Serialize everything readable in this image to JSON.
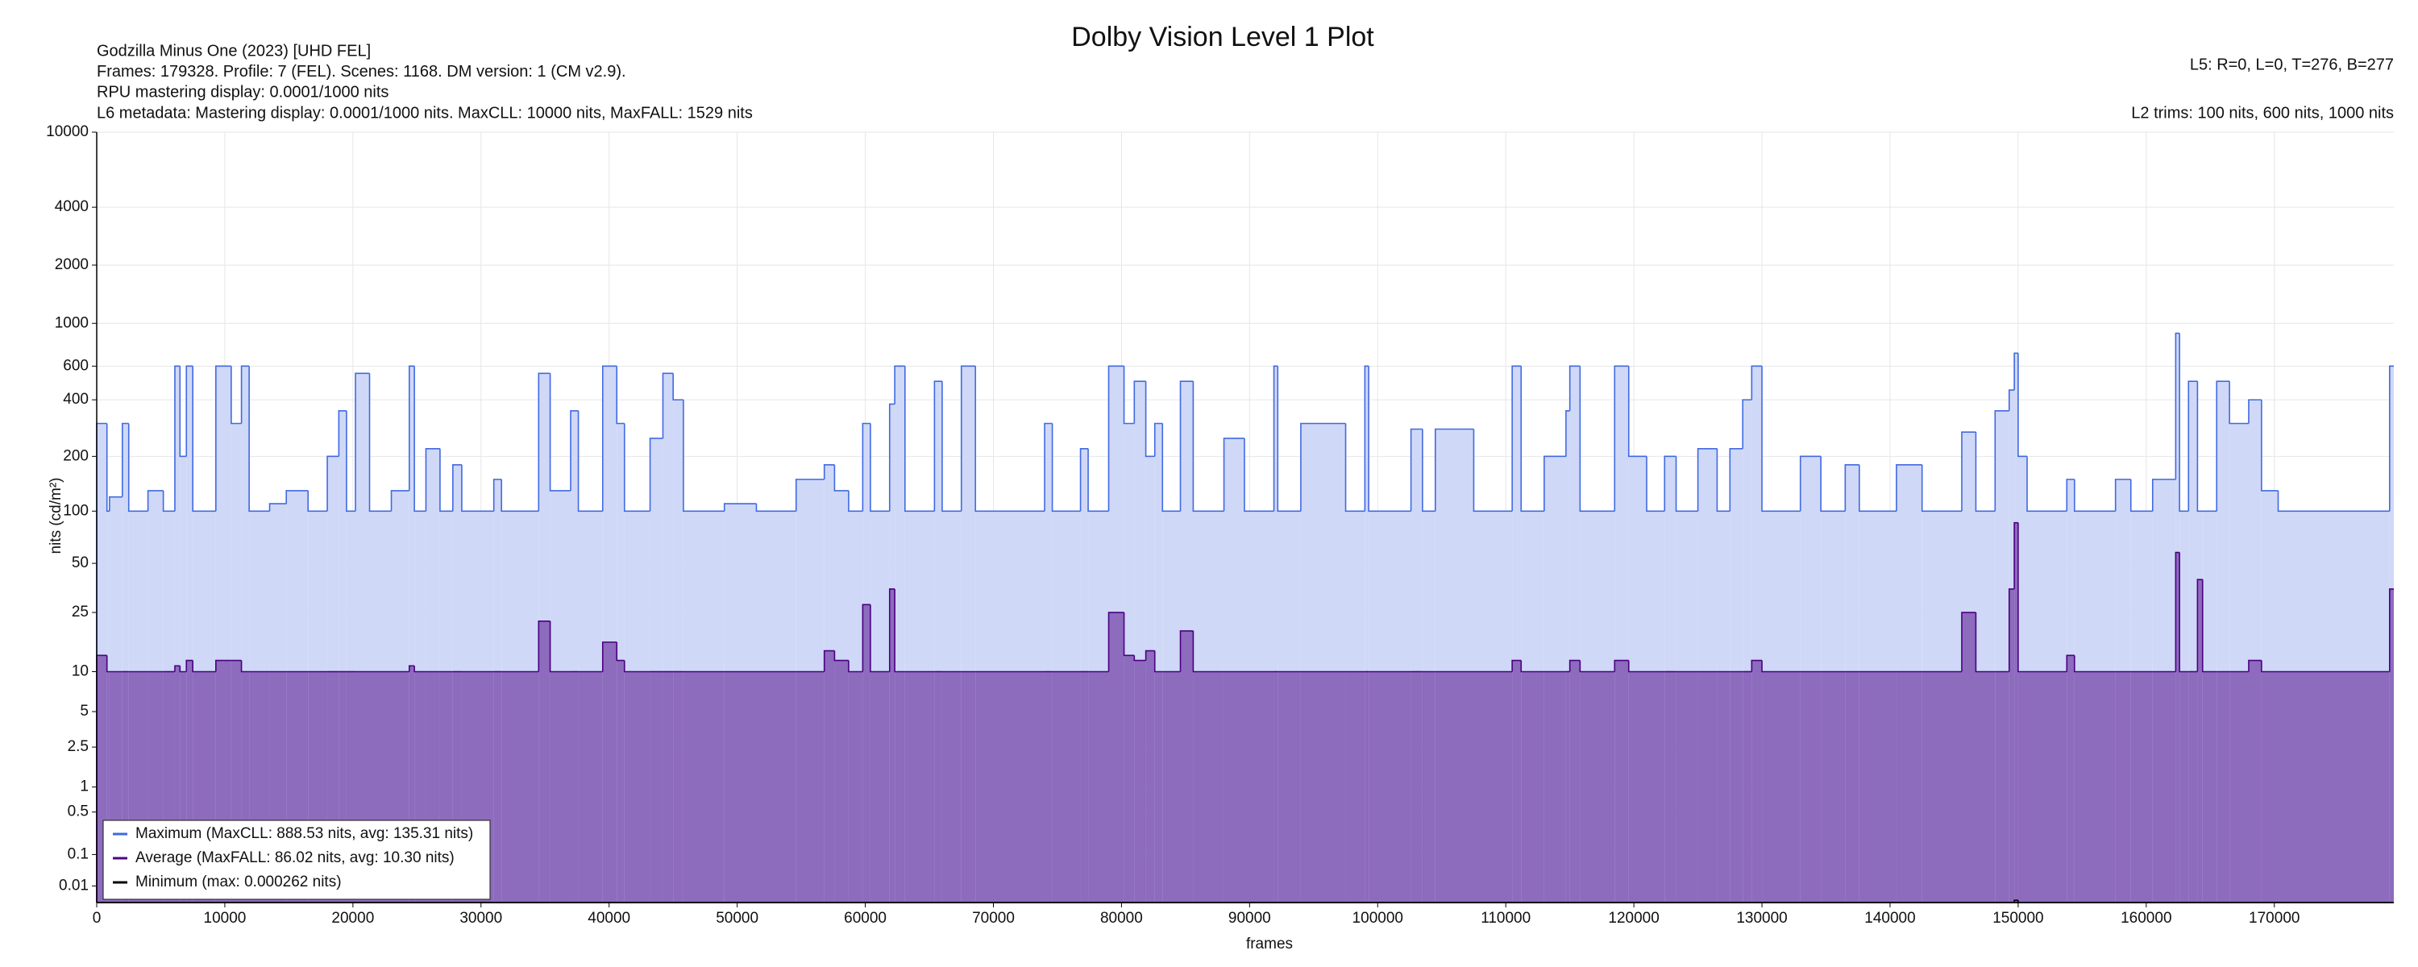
{
  "chart_data": {
    "type": "step",
    "title": "Dolby Vision Level 1 Plot",
    "info_left": [
      "Godzilla Minus One (2023) [UHD FEL]",
      "Frames: 179328. Profile: 7 (FEL). Scenes: 1168. DM version: 1 (CM v2.9).",
      "RPU mastering display: 0.0001/1000 nits",
      "L6 metadata: Mastering display: 0.0001/1000 nits. MaxCLL: 10000 nits, MaxFALL: 1529 nits"
    ],
    "info_right": [
      "L5: R=0, L=0, T=276, B=277",
      "L2 trims: 100 nits, 600 nits, 1000 nits"
    ],
    "x_label": "frames",
    "y_label": "nits (cd/m²)",
    "yscale": "pq",
    "grid": true,
    "legend": "lower left",
    "xlim": [
      0,
      179328
    ],
    "xticks": [
      0,
      10000,
      20000,
      30000,
      40000,
      50000,
      60000,
      70000,
      80000,
      90000,
      100000,
      110000,
      120000,
      130000,
      140000,
      150000,
      160000,
      170000
    ],
    "ylim": [
      0,
      10000
    ],
    "yticks": [
      0.01,
      0.1,
      0.5,
      1,
      2.5,
      5,
      10,
      25,
      50,
      100,
      200,
      400,
      600,
      1000,
      2000,
      4000,
      10000
    ],
    "x": [
      0,
      800,
      1000,
      2000,
      2500,
      4000,
      5200,
      6100,
      6500,
      7000,
      7500,
      9300,
      10500,
      11300,
      11900,
      13500,
      14800,
      16500,
      18000,
      18900,
      19500,
      20200,
      21300,
      23000,
      24400,
      24800,
      25700,
      26800,
      27800,
      28500,
      31000,
      31600,
      34500,
      35400,
      37000,
      37600,
      39500,
      40600,
      41200,
      43200,
      44200,
      45000,
      45800,
      49000,
      51500,
      54600,
      56800,
      57600,
      58700,
      59800,
      60400,
      61900,
      62300,
      63100,
      65400,
      66000,
      67500,
      68600,
      74000,
      74600,
      76800,
      77400,
      79000,
      80200,
      81000,
      81900,
      82600,
      83200,
      84600,
      85600,
      88000,
      89600,
      91900,
      92200,
      94000,
      97500,
      99000,
      99300,
      102600,
      103500,
      104500,
      107500,
      110500,
      111200,
      113000,
      114700,
      115000,
      115800,
      118500,
      119600,
      121000,
      122400,
      123300,
      125000,
      126500,
      127500,
      128500,
      129200,
      130000,
      133000,
      134600,
      136500,
      137600,
      140500,
      142500,
      145600,
      146700,
      148200,
      149300,
      149700,
      150000,
      150700,
      153800,
      154400,
      157600,
      158800,
      160500,
      162300,
      162600,
      163300,
      164000,
      164400,
      165500,
      166500,
      168000,
      169000,
      170300,
      179000
    ],
    "series": [
      {
        "name": "Maximum (MaxCLL: 888.53 nits, avg: 135.31 nits)",
        "color": "#4169e1",
        "fill": "#cfd8f7",
        "values": [
          300,
          100,
          120,
          300,
          100,
          130,
          100,
          600,
          200,
          600,
          100,
          600,
          300,
          600,
          100,
          110,
          130,
          100,
          200,
          350,
          100,
          550,
          100,
          130,
          600,
          100,
          220,
          100,
          180,
          100,
          150,
          100,
          550,
          130,
          350,
          100,
          600,
          300,
          100,
          250,
          550,
          400,
          100,
          110,
          100,
          150,
          180,
          130,
          100,
          300,
          100,
          380,
          600,
          100,
          500,
          100,
          600,
          100,
          300,
          100,
          220,
          100,
          600,
          300,
          500,
          200,
          300,
          100,
          500,
          100,
          250,
          100,
          600,
          100,
          300,
          100,
          600,
          100,
          280,
          100,
          280,
          100,
          600,
          100,
          200,
          350,
          600,
          100,
          600,
          200,
          100,
          200,
          100,
          220,
          100,
          220,
          400,
          600,
          100,
          200,
          100,
          180,
          100,
          180,
          100,
          270,
          100,
          350,
          450,
          700,
          200,
          100,
          150,
          100,
          150,
          100,
          150,
          888.53,
          100,
          500,
          100,
          100,
          500,
          300,
          400,
          130,
          100,
          600
        ]
      },
      {
        "name": "Average (MaxFALL: 86.02 nits, avg: 10.30 nits)",
        "color": "#4b0082",
        "fill": "#8d6bbd",
        "values": [
          13,
          10,
          10,
          10,
          10,
          10,
          10,
          11,
          10,
          12,
          10,
          12,
          12,
          10,
          10,
          10,
          10,
          10,
          10,
          10,
          10,
          10,
          10,
          10,
          11,
          10,
          10,
          10,
          10,
          10,
          10,
          10,
          22,
          10,
          10,
          10,
          16,
          12,
          10,
          10,
          10,
          10,
          10,
          10,
          10,
          10,
          14,
          12,
          10,
          28,
          10,
          35,
          10,
          10,
          10,
          10,
          10,
          10,
          10,
          10,
          10,
          10,
          25,
          13,
          12,
          14,
          10,
          10,
          19,
          10,
          10,
          10,
          10,
          10,
          10,
          10,
          10,
          10,
          10,
          10,
          10,
          10,
          12,
          10,
          10,
          10,
          12,
          10,
          12,
          10,
          10,
          10,
          10,
          10,
          10,
          10,
          10,
          12,
          10,
          10,
          10,
          10,
          10,
          10,
          10,
          25,
          10,
          10,
          35,
          86.02,
          10,
          10,
          13,
          10,
          10,
          10,
          10,
          58,
          10,
          10,
          40,
          10,
          10,
          10,
          12,
          10,
          10,
          35
        ]
      },
      {
        "name": "Minimum (max: 0.000262 nits)",
        "color": "#000000",
        "values": [
          0,
          0,
          0,
          0,
          0,
          0,
          0,
          0,
          0,
          0,
          0,
          0,
          0,
          0,
          0,
          0,
          0,
          0,
          0,
          0,
          0,
          0,
          0,
          0,
          0,
          0,
          0,
          0,
          0,
          0,
          0,
          0,
          0,
          0,
          0,
          0,
          0,
          0,
          0,
          0,
          0,
          0,
          0,
          0,
          0,
          0,
          0,
          0,
          0,
          0,
          0,
          0,
          0,
          0,
          0,
          0,
          0,
          0,
          0,
          0,
          0,
          0,
          0,
          0,
          0,
          0,
          0,
          0,
          0,
          0,
          0,
          0,
          0,
          0,
          0,
          0,
          0,
          0,
          0,
          0,
          0,
          0,
          0,
          0,
          0,
          0,
          0,
          0,
          0,
          0,
          0,
          0,
          0,
          0,
          0,
          0,
          0,
          0,
          0,
          0,
          0,
          0,
          0,
          0,
          0,
          0,
          0,
          0,
          0,
          0.000262,
          0,
          0,
          0,
          0,
          0,
          0,
          0,
          0,
          0,
          0,
          0,
          0,
          0,
          0,
          0,
          0,
          0,
          0
        ]
      }
    ]
  }
}
